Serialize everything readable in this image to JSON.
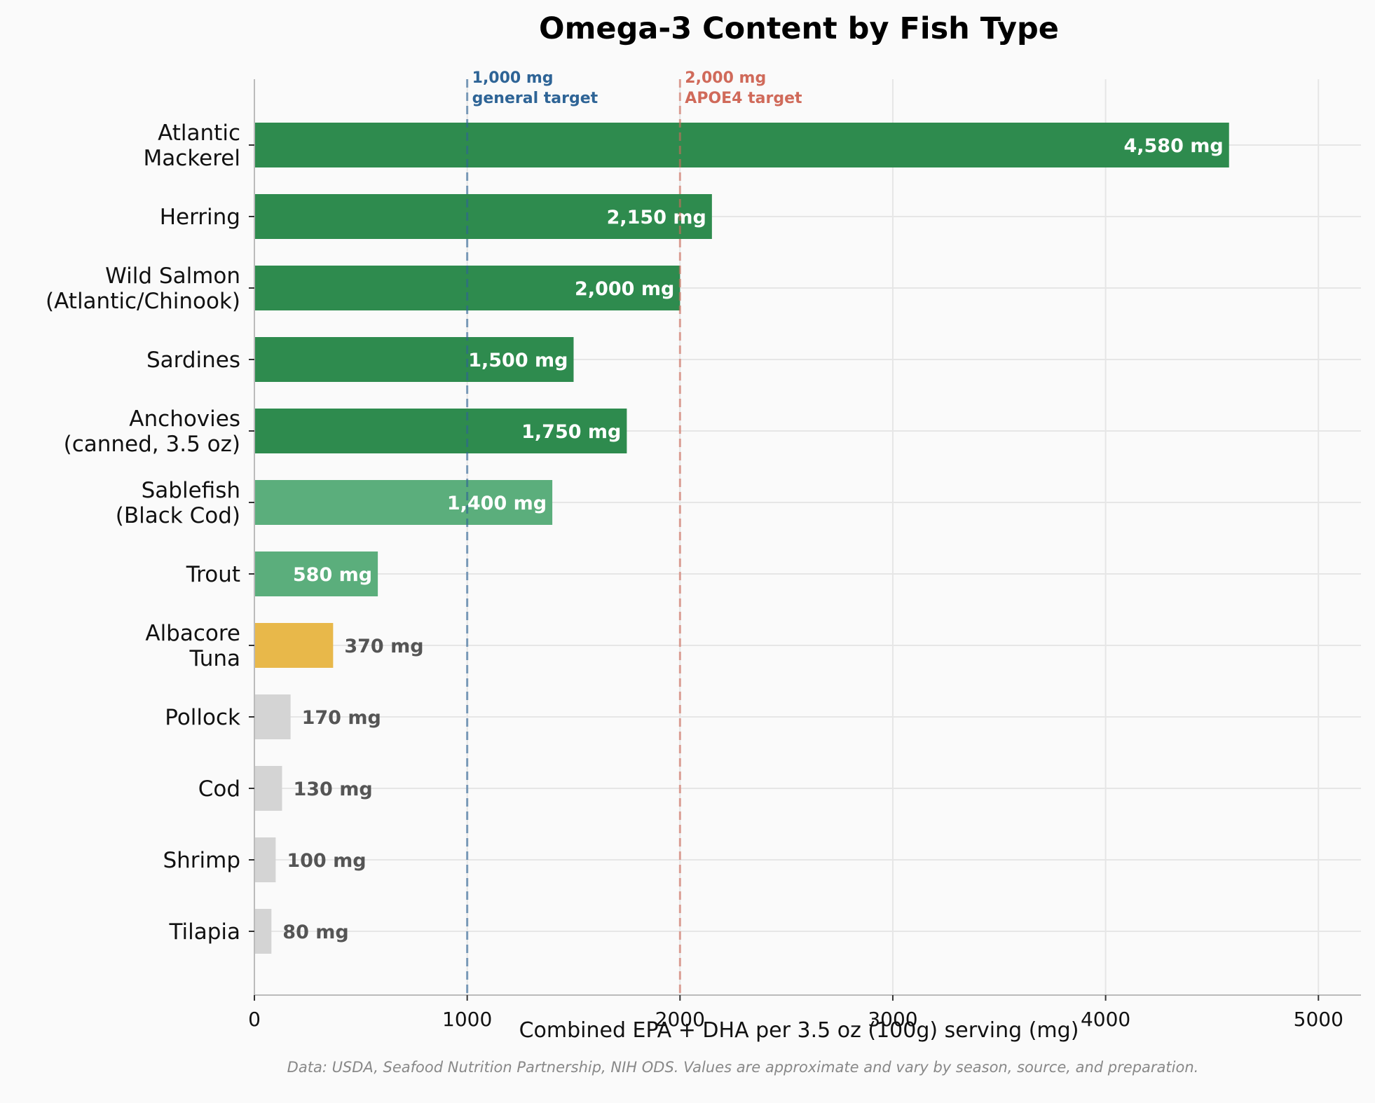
{
  "chart_data": {
    "type": "bar",
    "orientation": "horizontal",
    "title": "Omega-3 Content by Fish Type",
    "xlabel": "Combined EPA + DHA per 3.5 oz (100g) serving (mg)",
    "ylabel": "",
    "xlim": [
      0,
      5200
    ],
    "xticks": [
      "0",
      "1000",
      "2000",
      "3000",
      "4000",
      "5000"
    ],
    "xtick_values": [
      0,
      1000,
      2000,
      3000,
      4000,
      5000
    ],
    "grid": true,
    "categories": [
      [
        "Atlantic",
        "Mackerel"
      ],
      [
        "Herring"
      ],
      [
        "Wild Salmon",
        "(Atlantic/Chinook)"
      ],
      [
        "Sardines"
      ],
      [
        "Anchovies",
        "(canned, 3.5 oz)"
      ],
      [
        "Sablefish",
        "(Black Cod)"
      ],
      [
        "Trout"
      ],
      [
        "Albacore",
        "Tuna"
      ],
      [
        "Pollock"
      ],
      [
        "Cod"
      ],
      [
        "Shrimp"
      ],
      [
        "Tilapia"
      ]
    ],
    "values": [
      4580,
      2150,
      2000,
      1500,
      1750,
      1400,
      580,
      370,
      170,
      130,
      100,
      80
    ],
    "value_labels": [
      "4,580 mg",
      "2,150 mg",
      "2,000 mg",
      "1,500 mg",
      "1,750 mg",
      "1,400 mg",
      "580 mg",
      "370 mg",
      "170 mg",
      "130 mg",
      "100 mg",
      "80 mg"
    ],
    "bar_colors": [
      "#2e8b4e",
      "#2e8b4e",
      "#2e8b4e",
      "#2e8b4e",
      "#2e8b4e",
      "#5bae7c",
      "#5bae7c",
      "#e8b84a",
      "#d4d4d4",
      "#d4d4d4",
      "#d4d4d4",
      "#d4d4d4"
    ],
    "label_inside": [
      true,
      true,
      true,
      true,
      true,
      true,
      true,
      false,
      false,
      false,
      false,
      false
    ],
    "reference_lines": [
      {
        "value": 1000,
        "label": [
          "1,000 mg",
          "general target"
        ],
        "color": "#2e6496"
      },
      {
        "value": 2000,
        "label": [
          "2,000 mg",
          "APOE4 target"
        ],
        "color": "#d06a5a"
      }
    ],
    "footnote": "Data: USDA, Seafood Nutrition Partnership, NIH ODS. Values are approximate and vary by season, source, and preparation."
  }
}
